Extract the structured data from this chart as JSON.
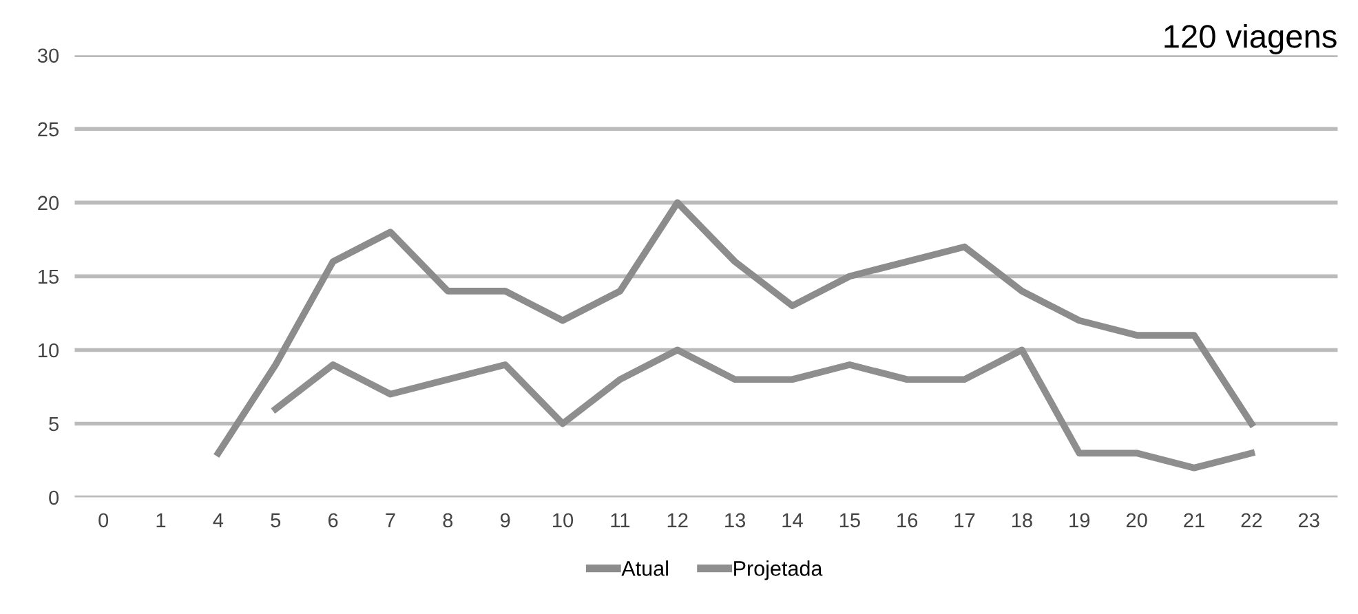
{
  "chart_data": {
    "type": "line",
    "title": "120 viagens",
    "categories": [
      "0",
      "1",
      "4",
      "5",
      "6",
      "7",
      "8",
      "9",
      "10",
      "11",
      "12",
      "13",
      "14",
      "15",
      "16",
      "17",
      "18",
      "19",
      "20",
      "21",
      "22",
      "23"
    ],
    "series": [
      {
        "name": "Atual",
        "color": "#8c8c8c",
        "values": [
          null,
          null,
          3,
          9,
          16,
          18,
          14,
          14,
          12,
          14,
          20,
          16,
          13,
          15,
          16,
          17,
          14,
          12,
          11,
          11,
          5,
          null
        ]
      },
      {
        "name": "Projetada",
        "color": "#8e8e8e",
        "values": [
          null,
          null,
          null,
          6,
          9,
          7,
          8,
          9,
          5,
          8,
          10,
          8,
          8,
          9,
          8,
          8,
          10,
          3,
          3,
          2,
          3,
          null
        ]
      }
    ],
    "ylim": [
      0,
      30
    ],
    "yticks": [
      0,
      5,
      10,
      15,
      20,
      25,
      30
    ],
    "grid": "y",
    "legend": "bottom",
    "marker": "none",
    "line_style": "solid"
  }
}
